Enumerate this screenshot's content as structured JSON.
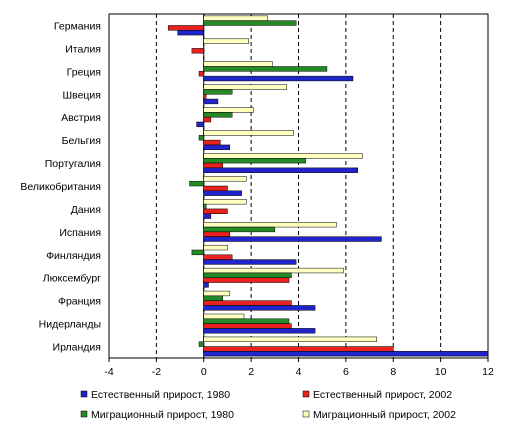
{
  "chart_data": {
    "type": "bar",
    "orientation": "horizontal",
    "categories": [
      "Германия",
      "Италия",
      "Греция",
      "Швеция",
      "Австрия",
      "Бельгия",
      "Португалия",
      "Великобритания",
      "Дания",
      "Испания",
      "Финляндия",
      "Люксембург",
      "Франция",
      "Нидерланды",
      "Ирландия"
    ],
    "series": [
      {
        "name": "Естественный прирост, 1980",
        "color": "#1f25c8",
        "values": [
          -1.1,
          0.0,
          6.3,
          0.6,
          -0.3,
          1.1,
          6.5,
          1.6,
          0.3,
          7.5,
          3.9,
          0.2,
          4.7,
          4.7,
          12.0
        ]
      },
      {
        "name": "Естественный прирост, 2002",
        "color": "#e8231f",
        "values": [
          -1.5,
          -0.5,
          -0.2,
          0.1,
          0.3,
          0.7,
          0.8,
          1.0,
          1.0,
          1.1,
          1.2,
          3.6,
          3.7,
          3.7,
          8.0
        ]
      },
      {
        "name": "Миграционный прирост, 1980",
        "color": "#258a25",
        "values": [
          3.9,
          0.0,
          5.2,
          1.2,
          1.2,
          -0.2,
          4.3,
          -0.6,
          0.1,
          3.0,
          -0.5,
          3.7,
          0.8,
          3.6,
          -0.2
        ]
      },
      {
        "name": "Миграционный прирост, 2002",
        "color": "#ffffc0",
        "values": [
          2.7,
          1.9,
          2.9,
          3.5,
          2.1,
          3.8,
          6.7,
          1.8,
          1.8,
          5.6,
          1.0,
          5.9,
          1.1,
          1.7,
          7.3
        ]
      }
    ],
    "xlim": [
      -4,
      12
    ],
    "xticks": [
      "-4",
      "-2",
      "0",
      "2",
      "4",
      "6",
      "8",
      "10",
      "12"
    ],
    "grid": "dashed vertical",
    "legend_position": "bottom"
  }
}
